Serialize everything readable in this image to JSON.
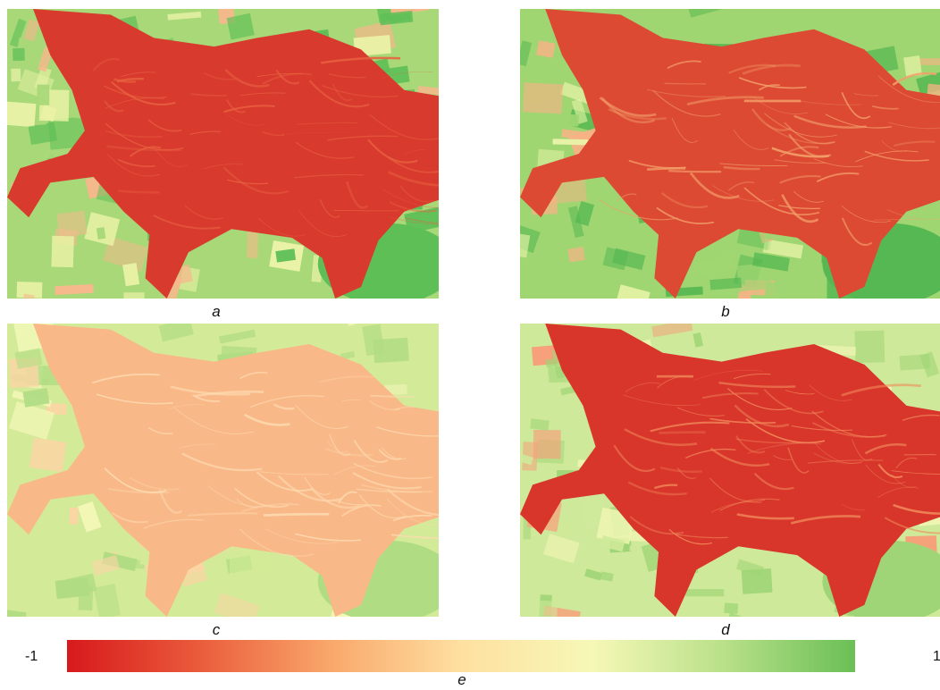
{
  "panels": [
    {
      "label": "a",
      "palette": {
        "water": "#d83a2e",
        "water_light": "#e8603f",
        "land1": "#5fbf57",
        "land2": "#a8d878",
        "land3": "#e9f2a6",
        "land4": "#f6b88c"
      }
    },
    {
      "label": "b",
      "palette": {
        "water": "#dc4a34",
        "water_light": "#f3a06a",
        "land1": "#56b852",
        "land2": "#9fd672",
        "land3": "#e8f3a8",
        "land4": "#f7b386"
      }
    },
    {
      "label": "c",
      "palette": {
        "water": "#f9b888",
        "water_light": "#fddbb0",
        "land1": "#b0dc84",
        "land2": "#d3ea98",
        "land3": "#f2f7b6",
        "land4": "#fbd5a4"
      }
    },
    {
      "label": "d",
      "palette": {
        "water": "#d8352b",
        "water_light": "#f08a5a",
        "land1": "#9fd576",
        "land2": "#cfe99a",
        "land3": "#f1f6b4",
        "land4": "#f6a07a"
      }
    }
  ],
  "colorbar": {
    "label": "e",
    "min_label": "-1",
    "max_label": "1",
    "colors": [
      "#d7191c",
      "#ea5b3b",
      "#f9a76a",
      "#fee0a1",
      "#f6f8b6",
      "#b9e08a",
      "#6abf55"
    ]
  }
}
